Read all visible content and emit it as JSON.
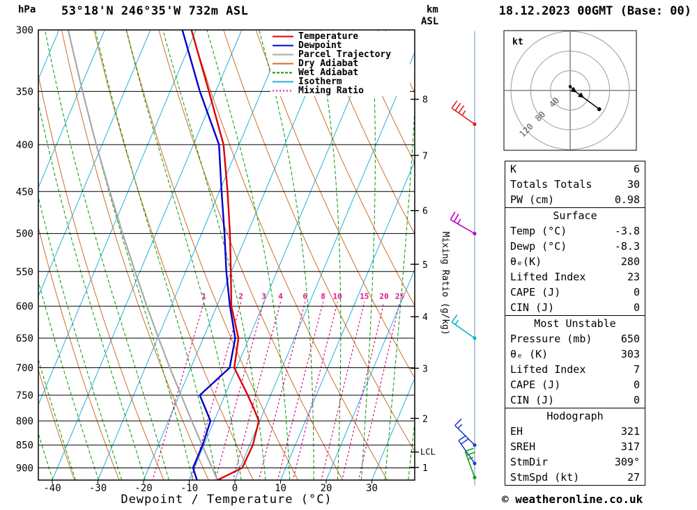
{
  "header": {
    "title": "53°18'N 246°35'W 732m ASL",
    "date": "18.12.2023 00GMT (Base: 00)"
  },
  "axes": {
    "pressure_unit": "hPa",
    "pressure_ticks": [
      300,
      350,
      400,
      450,
      500,
      550,
      600,
      650,
      700,
      750,
      800,
      850,
      900
    ],
    "temp_ticks": [
      -40,
      -30,
      -20,
      -10,
      0,
      10,
      20,
      30
    ],
    "xlabel": "Dewpoint / Temperature (°C)",
    "km_unit": "km",
    "km_unit2": "ASL",
    "km_ticks": [
      1,
      2,
      3,
      4,
      5,
      6,
      7,
      8
    ],
    "lcl_label": "LCL",
    "mixing_axis_label": "Mixing Ratio (g/kg)"
  },
  "legend": [
    {
      "label": "Temperature",
      "color": "#dd0000",
      "dash": ""
    },
    {
      "label": "Dewpoint",
      "color": "#0000cc",
      "dash": ""
    },
    {
      "label": "Parcel Trajectory",
      "color": "#a8a8a8",
      "dash": ""
    },
    {
      "label": "Dry Adiabat",
      "color": "#cc6e28",
      "dash": ""
    },
    {
      "label": "Wet Adiabat",
      "color": "#009900",
      "dash": "4 2"
    },
    {
      "label": "Isotherm",
      "color": "#22b0e0",
      "dash": ""
    },
    {
      "label": "Mixing Ratio",
      "color": "#dd1188",
      "dash": "2 3"
    }
  ],
  "chart_data": {
    "type": "line",
    "title": "Skew-T log-P sounding",
    "pressure_axis_hpa": {
      "min": 300,
      "max": 928,
      "scale": "log"
    },
    "temp_axis_c": {
      "min": -42,
      "max": 38
    },
    "lcl_pressure_hpa": 865,
    "background": {
      "isotherm_step_c": 10,
      "dry_adiabat_step_k": 10,
      "wet_adiabat_step_c": 5,
      "mixing_ratio_gkg": [
        1,
        2,
        3,
        4,
        6,
        8,
        10,
        15,
        20,
        25
      ]
    },
    "series": [
      {
        "name": "Temperature",
        "color": "#dd0000",
        "points_p_t": [
          [
            928,
            -3.8
          ],
          [
            900,
            0.5
          ],
          [
            850,
            0.7
          ],
          [
            800,
            -0.2
          ],
          [
            775,
            -2.5
          ],
          [
            750,
            -5.0
          ],
          [
            700,
            -10.5
          ],
          [
            650,
            -12.3
          ],
          [
            600,
            -16.8
          ],
          [
            550,
            -20.1
          ],
          [
            500,
            -23.8
          ],
          [
            450,
            -28.2
          ],
          [
            400,
            -33.4
          ],
          [
            350,
            -41.5
          ],
          [
            300,
            -51.0
          ]
        ]
      },
      {
        "name": "Dewpoint",
        "color": "#0000cc",
        "points_p_t": [
          [
            928,
            -8.3
          ],
          [
            900,
            -10.3
          ],
          [
            850,
            -10.3
          ],
          [
            800,
            -10.8
          ],
          [
            750,
            -15.5
          ],
          [
            700,
            -11.5
          ],
          [
            650,
            -13.0
          ],
          [
            600,
            -17.1
          ],
          [
            550,
            -21.1
          ],
          [
            500,
            -25.0
          ],
          [
            450,
            -29.5
          ],
          [
            400,
            -34.4
          ],
          [
            350,
            -43.5
          ],
          [
            300,
            -53.0
          ]
        ]
      },
      {
        "name": "Parcel Trajectory",
        "color": "#a8a8a8",
        "points_p_t": [
          [
            928,
            -3.8
          ],
          [
            900,
            -6.1
          ],
          [
            850,
            -10.4
          ],
          [
            800,
            -14.9
          ],
          [
            750,
            -19.6
          ],
          [
            700,
            -24.6
          ],
          [
            650,
            -29.8
          ],
          [
            600,
            -35.3
          ],
          [
            550,
            -41.1
          ],
          [
            500,
            -47.3
          ],
          [
            450,
            -54.0
          ],
          [
            400,
            -61.3
          ],
          [
            350,
            -69.2
          ],
          [
            300,
            -78.0
          ]
        ]
      }
    ]
  },
  "wind_profile": {
    "barbs": [
      {
        "pressure_hpa": 380,
        "speed_kt": 35,
        "direction_deg": 305,
        "color": "#e02020"
      },
      {
        "pressure_hpa": 500,
        "speed_kt": 25,
        "direction_deg": 300,
        "color": "#c000c0"
      },
      {
        "pressure_hpa": 650,
        "speed_kt": 15,
        "direction_deg": 305,
        "color": "#00b8c8"
      },
      {
        "pressure_hpa": 850,
        "speed_kt": 15,
        "direction_deg": 315,
        "color": "#2040d0"
      },
      {
        "pressure_hpa": 890,
        "speed_kt": 20,
        "direction_deg": 325,
        "color": "#2040d0"
      },
      {
        "pressure_hpa": 922,
        "speed_kt": 25,
        "direction_deg": 340,
        "color": "#10a010"
      }
    ]
  },
  "hodograph": {
    "unit_label": "kt",
    "ring_step_kt": 40,
    "ring_labels": [
      "120",
      "80",
      "40"
    ],
    "trace_kt": [
      [
        0,
        8
      ],
      [
        13,
        -4
      ],
      [
        28,
        -15
      ],
      [
        59,
        -38
      ]
    ]
  },
  "stats_sections": [
    {
      "title": "",
      "rows": [
        [
          "K",
          "6"
        ],
        [
          "Totals Totals",
          "30"
        ],
        [
          "PW (cm)",
          "0.98"
        ]
      ]
    },
    {
      "title": "Surface",
      "rows": [
        [
          "Temp (°C)",
          "-3.8"
        ],
        [
          "Dewp (°C)",
          "-8.3"
        ],
        [
          "θₑ(K)",
          "280"
        ],
        [
          "Lifted Index",
          "23"
        ],
        [
          "CAPE (J)",
          "0"
        ],
        [
          "CIN (J)",
          "0"
        ]
      ]
    },
    {
      "title": "Most Unstable",
      "rows": [
        [
          "Pressure (mb)",
          "650"
        ],
        [
          "θₑ (K)",
          "303"
        ],
        [
          "Lifted Index",
          "7"
        ],
        [
          "CAPE (J)",
          "0"
        ],
        [
          "CIN (J)",
          "0"
        ]
      ]
    },
    {
      "title": "Hodograph",
      "rows": [
        [
          "EH",
          "321"
        ],
        [
          "SREH",
          "317"
        ],
        [
          "StmDir",
          "309°"
        ],
        [
          "StmSpd (kt)",
          "27"
        ]
      ]
    }
  ],
  "footer": {
    "copyright": "© weatheronline.co.uk"
  }
}
